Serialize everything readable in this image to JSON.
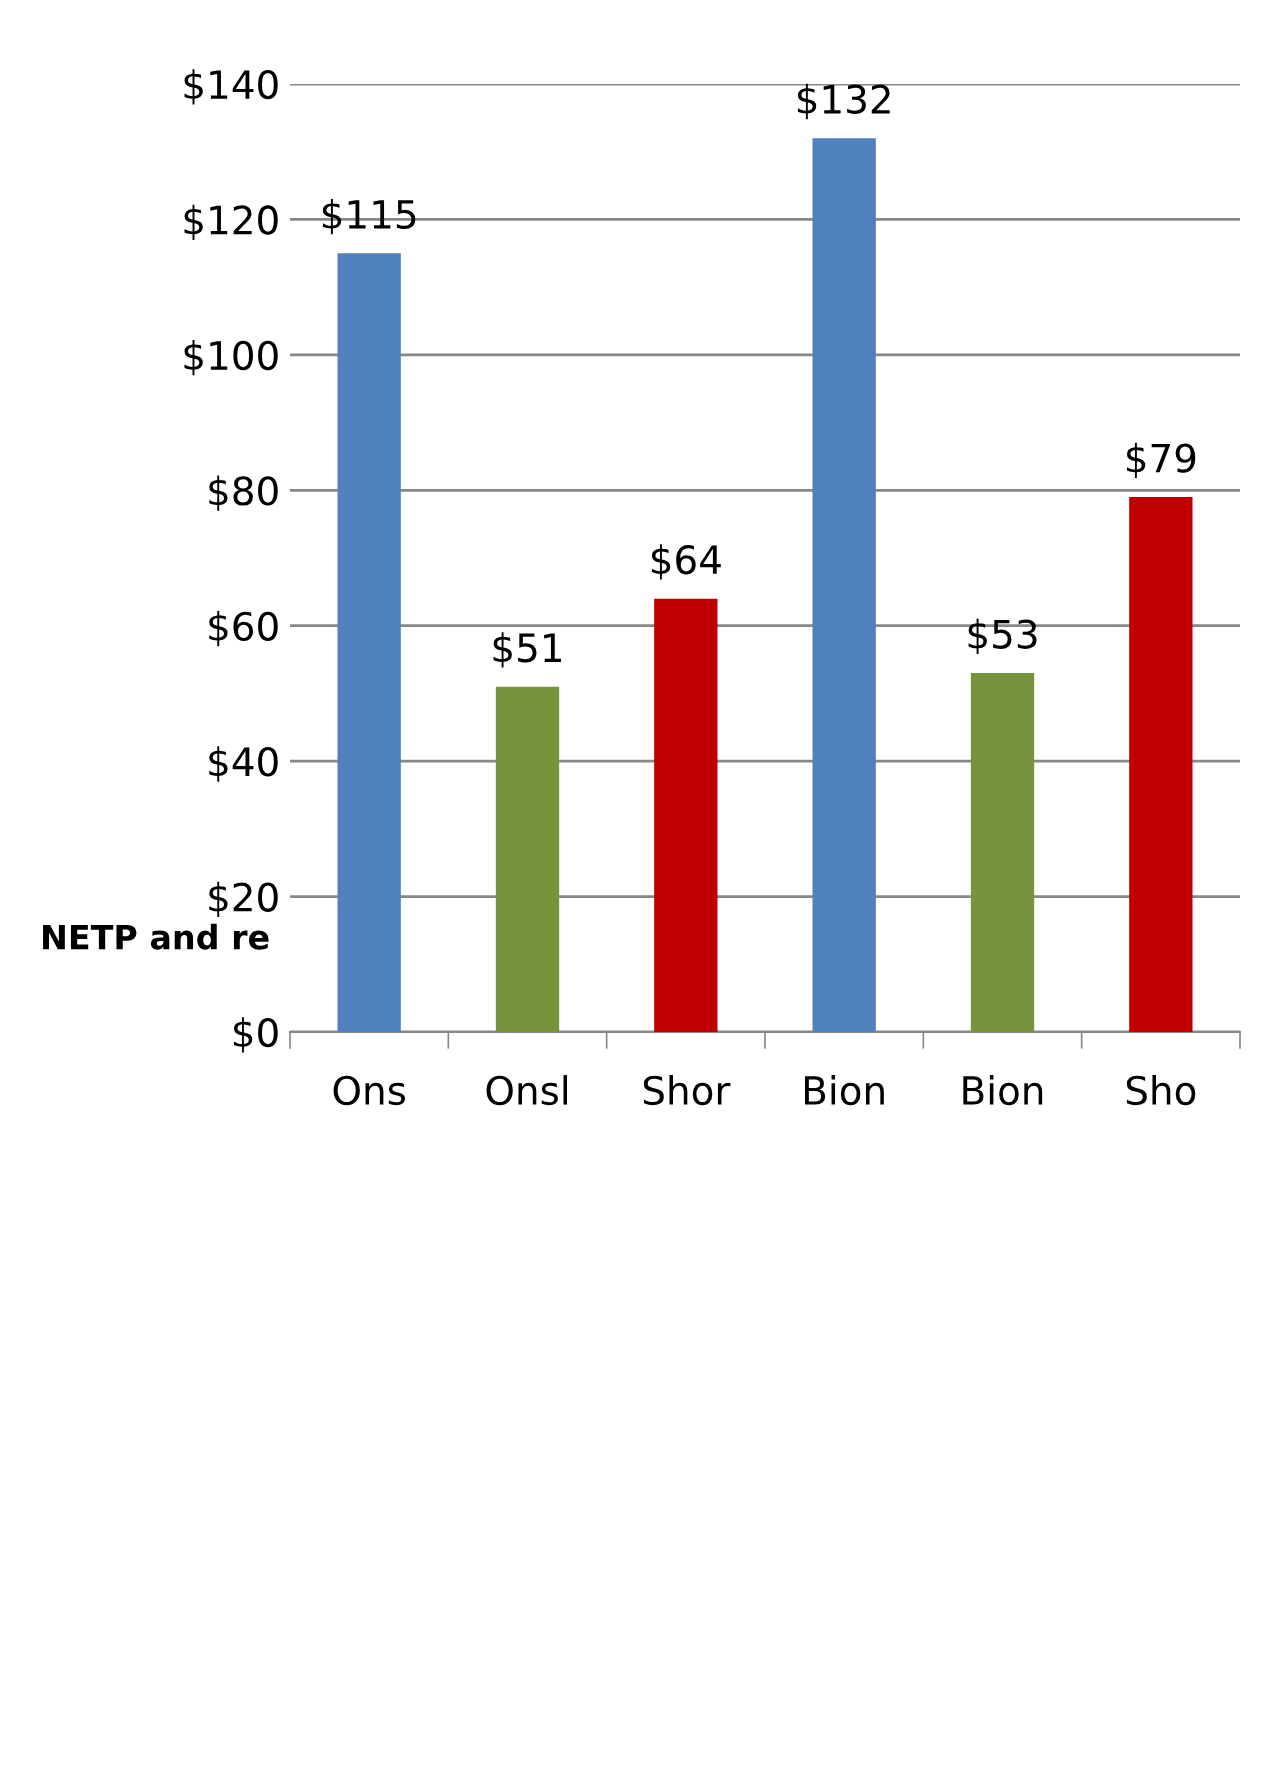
{
  "chart_data": {
    "type": "bar",
    "title": "NETP and re",
    "categories": [
      "Ons",
      "Onsl",
      "Shor",
      "Bion",
      "Bion",
      "Sho"
    ],
    "values": [
      115,
      51,
      64,
      132,
      53,
      79
    ],
    "colors": [
      "#4f81bd",
      "#77933c",
      "#c00000",
      "#4f81bd",
      "#77933c",
      "#c00000"
    ],
    "ylim": [
      0,
      140
    ],
    "yticks": [
      {
        "value": 0,
        "label": "$0"
      },
      {
        "value": 20,
        "label": "$20"
      },
      {
        "value": 40,
        "label": "$40"
      },
      {
        "value": 60,
        "label": "$60"
      },
      {
        "value": 80,
        "label": "$80"
      },
      {
        "value": 100,
        "label": "$100"
      },
      {
        "value": 120,
        "label": "$120"
      },
      {
        "value": 140,
        "label": "$140"
      }
    ],
    "value_labels": [
      "$115",
      "$51",
      "$64",
      "$132",
      "$53",
      "$79"
    ],
    "grid": "y"
  }
}
